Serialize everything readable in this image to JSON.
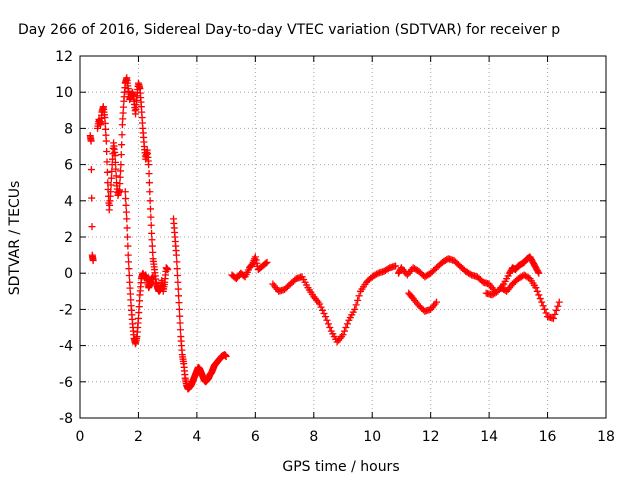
{
  "chart_data": {
    "type": "scatter",
    "title": "Day 266 of 2016, Sidereal Day-to-day VTEC variation (SDTVAR) for receiver p",
    "xlabel": "GPS time / hours",
    "ylabel": "SDTVAR / TECUs",
    "xlim": [
      0,
      18
    ],
    "ylim": [
      -8,
      12
    ],
    "xticks": [
      "0",
      "2",
      "4",
      "6",
      "8",
      "10",
      "12",
      "14",
      "16",
      "18"
    ],
    "yticks": [
      "-8",
      "-6",
      "-4",
      "-2",
      "0",
      "2",
      "4",
      "6",
      "8",
      "10",
      "12"
    ],
    "grid": true,
    "marker": "+",
    "marker_color": "#ff0000",
    "series": [
      {
        "segments": [
          {
            "x": [
              0.35,
              0.38,
              0.42,
              0.45
            ],
            "y": [
              7.6,
              7.3,
              1.0,
              0.7
            ]
          },
          {
            "x": [
              0.6,
              0.65,
              0.7,
              0.75,
              0.8,
              0.85,
              0.9,
              0.95,
              1.0,
              1.05,
              1.1,
              1.15,
              1.2,
              1.25,
              1.3,
              1.35,
              1.4,
              1.45,
              1.5,
              1.55,
              1.6,
              1.65,
              1.7,
              1.75,
              1.8,
              1.85,
              1.9,
              1.95,
              2.0,
              2.05,
              2.1,
              2.15,
              2.2,
              2.25,
              2.3,
              2.35,
              2.4,
              2.45,
              2.5,
              2.55,
              2.6,
              2.65,
              2.7,
              2.75,
              2.8,
              2.85,
              2.9,
              2.95,
              3.0
            ],
            "y": [
              8.0,
              8.5,
              8.2,
              8.9,
              9.2,
              8.6,
              7.3,
              5.0,
              3.5,
              4.5,
              6.0,
              7.2,
              6.5,
              5.0,
              4.3,
              4.6,
              6.0,
              8.2,
              9.5,
              10.5,
              10.8,
              10.2,
              9.6,
              9.8,
              10.0,
              9.5,
              8.8,
              9.8,
              10.5,
              10.2,
              9.2,
              8.0,
              7.0,
              6.3,
              6.8,
              6.0,
              4.0,
              2.2,
              0.8,
              0.2,
              -0.5,
              -0.8,
              -1.0,
              -0.9,
              -0.4,
              -1.0,
              -0.5,
              0.3,
              0.2
            ]
          },
          {
            "x": [
              1.55,
              1.6,
              1.65,
              1.7,
              1.75,
              1.8,
              1.85,
              1.9,
              1.95,
              2.0,
              2.05,
              2.1,
              2.15,
              2.2,
              2.25,
              2.3,
              2.35,
              2.4,
              2.45,
              2.5
            ],
            "y": [
              4.5,
              3.0,
              1.0,
              -0.5,
              -1.8,
              -2.8,
              -3.6,
              -3.9,
              -3.5,
              -2.5,
              -1.2,
              -0.3,
              0.0,
              -0.2,
              -0.1,
              -0.4,
              -0.8,
              -0.6,
              -0.3,
              -0.2
            ]
          },
          {
            "x": [
              3.2,
              3.25,
              3.3,
              3.35,
              3.4,
              3.45,
              3.5,
              3.55,
              3.6,
              3.65,
              3.7,
              3.75,
              3.8,
              3.85,
              3.9,
              3.95,
              4.0,
              4.05,
              4.1,
              4.15,
              4.2,
              4.25,
              4.3,
              4.35,
              4.4,
              4.45,
              4.5,
              4.55,
              4.6,
              4.65,
              4.7,
              4.75,
              4.8,
              4.85,
              4.9,
              4.95,
              5.0
            ],
            "y": [
              3.0,
              2.0,
              1.0,
              -0.5,
              -2.0,
              -3.5,
              -4.5,
              -5.0,
              -5.8,
              -6.2,
              -6.4,
              -6.3,
              -6.2,
              -6.0,
              -5.8,
              -5.6,
              -5.4,
              -5.2,
              -5.3,
              -5.5,
              -5.7,
              -5.9,
              -6.0,
              -5.9,
              -5.8,
              -5.6,
              -5.5,
              -5.3,
              -5.1,
              -5.0,
              -4.9,
              -4.8,
              -4.7,
              -4.6,
              -4.55,
              -4.5,
              -4.6
            ]
          },
          {
            "x": [
              5.2,
              5.35,
              5.5,
              5.65,
              5.8,
              5.9,
              6.0,
              6.1,
              6.25,
              6.4
            ],
            "y": [
              -0.1,
              -0.3,
              0.0,
              -0.2,
              0.3,
              0.5,
              0.9,
              0.2,
              0.4,
              0.6
            ]
          },
          {
            "x": [
              6.6,
              6.8,
              7.0,
              7.2,
              7.4,
              7.6,
              7.8,
              8.0,
              8.2,
              8.4,
              8.6,
              8.8,
              9.0,
              9.2,
              9.4,
              9.6,
              9.8,
              10.0,
              10.2,
              10.4,
              10.6,
              10.8
            ],
            "y": [
              -0.6,
              -1.0,
              -0.9,
              -0.6,
              -0.3,
              -0.2,
              -0.8,
              -1.3,
              -1.7,
              -2.4,
              -3.2,
              -3.8,
              -3.4,
              -2.6,
              -2.0,
              -1.0,
              -0.5,
              -0.2,
              0.0,
              0.1,
              0.3,
              0.4
            ]
          },
          {
            "x": [
              10.9,
              11.0,
              11.2,
              11.4,
              11.6,
              11.8,
              12.0,
              12.2,
              12.4,
              12.6,
              12.8,
              13.0,
              13.2,
              13.4,
              13.6,
              13.8,
              14.0,
              14.2
            ],
            "y": [
              0.0,
              0.3,
              -0.1,
              0.3,
              0.1,
              -0.2,
              0.0,
              0.3,
              0.6,
              0.8,
              0.7,
              0.4,
              0.1,
              -0.1,
              -0.2,
              -0.5,
              -0.6,
              -1.0
            ]
          },
          {
            "x": [
              11.25,
              11.4,
              11.6,
              11.8,
              12.0,
              12.2
            ],
            "y": [
              -1.1,
              -1.4,
              -1.8,
              -2.1,
              -2.0,
              -1.6
            ]
          },
          {
            "x": [
              13.9,
              14.1,
              14.3,
              14.5,
              14.7,
              14.8,
              14.9,
              15.0,
              15.1,
              15.2,
              15.3,
              15.4,
              15.5,
              15.6,
              15.7
            ],
            "y": [
              -1.1,
              -1.2,
              -1.0,
              -0.6,
              0.0,
              0.3,
              0.2,
              0.4,
              0.5,
              0.6,
              0.8,
              0.9,
              0.6,
              0.3,
              0.0
            ]
          },
          {
            "x": [
              14.4,
              14.6,
              14.8,
              15.0,
              15.2,
              15.4,
              15.6,
              15.8,
              16.0,
              16.2,
              16.4
            ],
            "y": [
              -0.8,
              -1.0,
              -0.6,
              -0.3,
              -0.1,
              -0.3,
              -0.8,
              -1.6,
              -2.4,
              -2.5,
              -1.6
            ]
          }
        ]
      }
    ]
  }
}
